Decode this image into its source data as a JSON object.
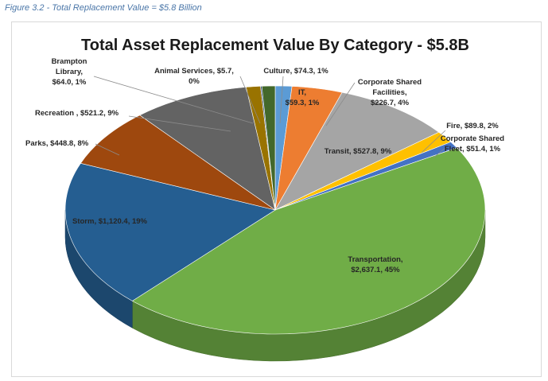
{
  "figure_caption": "Figure 3.2 - Total Replacement Value = $5.8 Billion",
  "chart_data": {
    "type": "pie",
    "title": "Total Asset Replacement Value By Category - $5.8B",
    "slices": [
      {
        "name": "Culture",
        "value": 74.3,
        "percent": "1%",
        "color": "#5b9bd5",
        "label_lines": [
          "Culture, $74.3, 1%"
        ]
      },
      {
        "name": "Corporate Shared Facilities",
        "value": 226.7,
        "percent": "4%",
        "color": "#ed7d31",
        "label_lines": [
          "Corporate Shared",
          "Facilities,",
          "$226.7, 4%"
        ]
      },
      {
        "name": "Transit",
        "value": 527.8,
        "percent": "9%",
        "color": "#a5a5a5",
        "label_lines": [
          "Transit, $527.8, 9%"
        ]
      },
      {
        "name": "Fire",
        "value": 89.8,
        "percent": "2%",
        "color": "#ffc000",
        "label_lines": [
          "Fire, $89.8, 2%"
        ]
      },
      {
        "name": "Corporate Shared Fleet",
        "value": 51.4,
        "percent": "1%",
        "color": "#4472c4",
        "label_lines": [
          "Corporate Shared",
          "Fleet, $51.4, 1%"
        ]
      },
      {
        "name": "Transportation",
        "value": 2637.1,
        "percent": "45%",
        "color": "#70ad47",
        "label_lines": [
          "Transportation,",
          "$2,637.1, 45%"
        ]
      },
      {
        "name": "Storm",
        "value": 1120.4,
        "percent": "19%",
        "color": "#255e91",
        "label_lines": [
          "Storm, $1,120.4, 19%"
        ]
      },
      {
        "name": "Parks",
        "value": 448.8,
        "percent": "8%",
        "color": "#9e480e",
        "label_lines": [
          "Parks, $448.8, 8%"
        ]
      },
      {
        "name": "Recreation",
        "value": 521.2,
        "percent": "9%",
        "color": "#636363",
        "label_lines": [
          "Recreation , $521.2, 9%"
        ]
      },
      {
        "name": "Brampton Library",
        "value": 64.0,
        "percent": "1%",
        "color": "#997300",
        "label_lines": [
          "Brampton",
          "Library,",
          "$64.0, 1%"
        ]
      },
      {
        "name": "Animal Services",
        "value": 5.7,
        "percent": "0%",
        "color": "#264478",
        "label_lines": [
          "Animal Services, $5.7,",
          "0%"
        ]
      },
      {
        "name": "IT",
        "value": 59.3,
        "percent": "1%",
        "color": "#43682b",
        "label_lines": [
          "IT,",
          "$59.3, 1%"
        ]
      }
    ],
    "legend": "none",
    "style": "3d-pie"
  }
}
